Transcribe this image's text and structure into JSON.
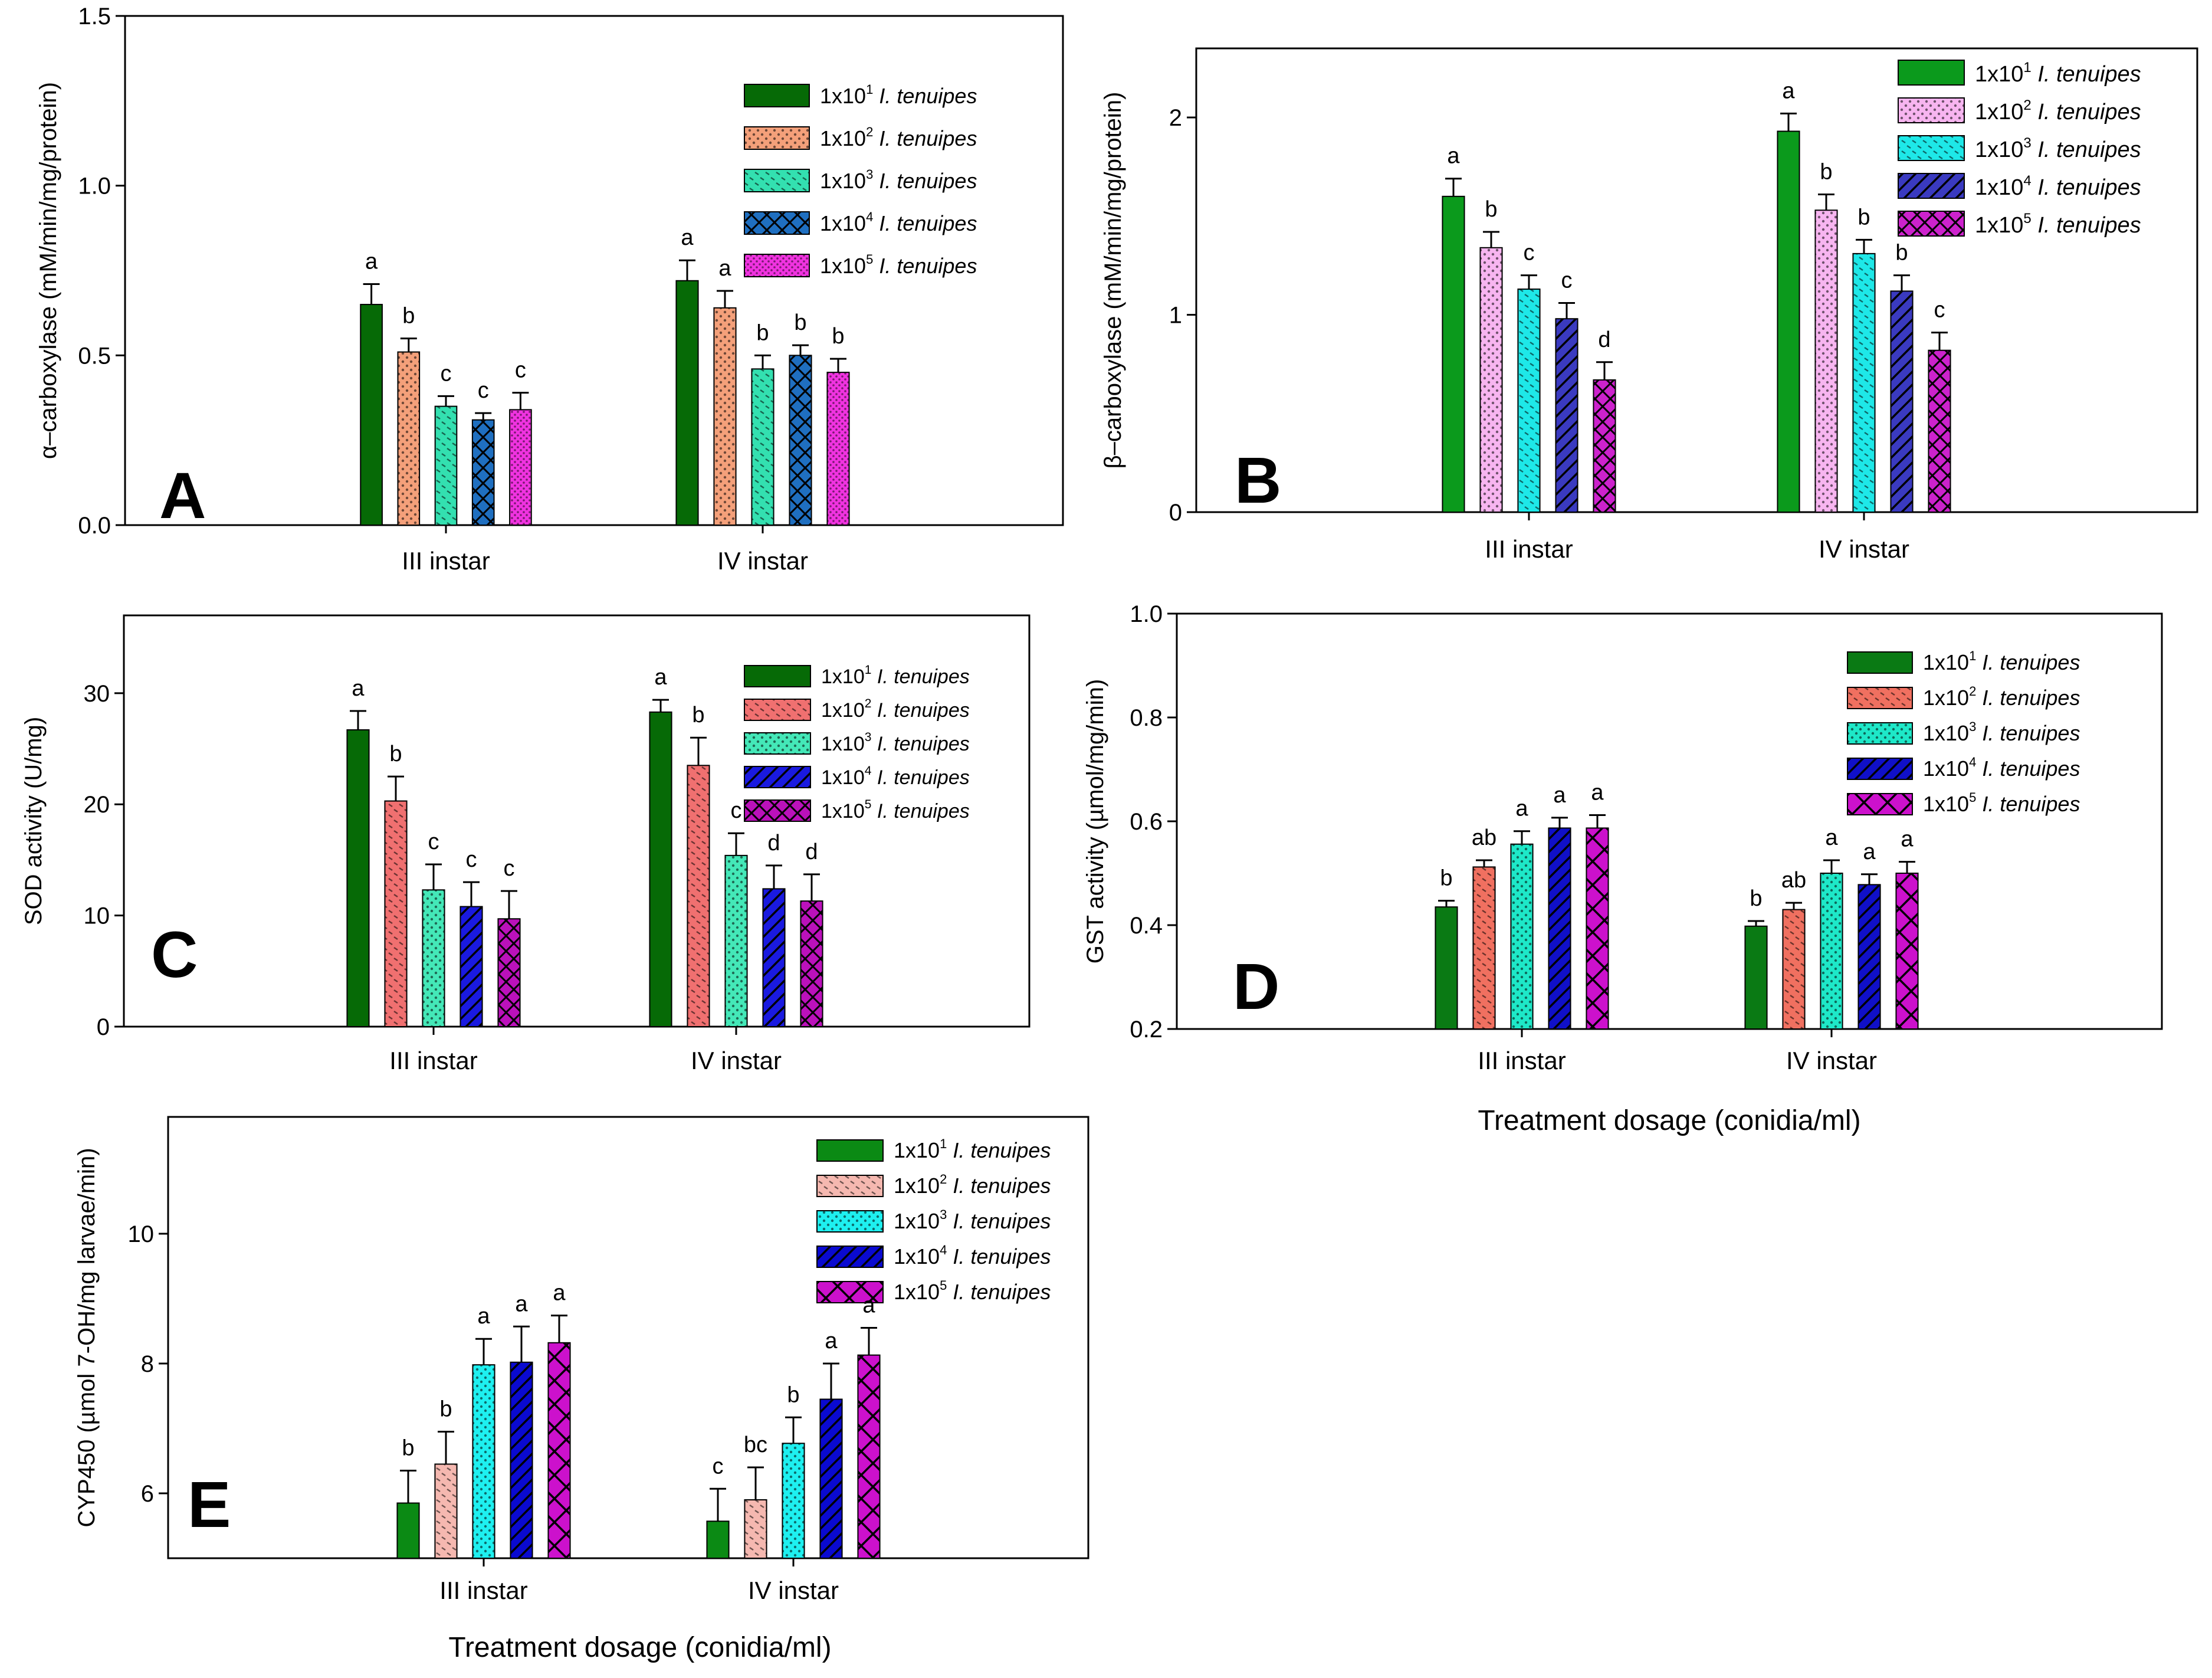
{
  "legend_entry": {
    "coef": "1x10",
    "species": "I. tenuipes"
  },
  "x_axis_title": "Treatment dosage (conidia/ml)",
  "chart_data": [
    {
      "id": "A",
      "type": "bar",
      "panel_letter": "A",
      "ylabel": "α–carboxylase (mM/min/mg/protein)",
      "ylim": [
        0,
        1.5
      ],
      "yticks": [
        "0.0",
        "0.5",
        "1.0",
        "1.5"
      ],
      "ytick_values": [
        0,
        0.5,
        1.0,
        1.5
      ],
      "categories": [
        "III instar",
        "IV instar"
      ],
      "series": [
        {
          "name": "1x10^1 I. tenuipes",
          "exp": "1",
          "color": "#066a06",
          "pattern": "none",
          "values": [
            0.65,
            0.72
          ],
          "errors": [
            0.06,
            0.06
          ],
          "letters": [
            "a",
            "a"
          ]
        },
        {
          "name": "1x10^2 I. tenuipes",
          "exp": "2",
          "color": "#f4a07a",
          "pattern": "dots",
          "values": [
            0.51,
            0.64
          ],
          "errors": [
            0.04,
            0.05
          ],
          "letters": [
            "b",
            "a"
          ]
        },
        {
          "name": "1x10^3 I. tenuipes",
          "exp": "3",
          "color": "#33e0b0",
          "pattern": "dashes",
          "values": [
            0.35,
            0.46
          ],
          "errors": [
            0.03,
            0.04
          ],
          "letters": [
            "c",
            "b"
          ]
        },
        {
          "name": "1x10^4 I. tenuipes",
          "exp": "4",
          "color": "#1f6fc0",
          "pattern": "cross",
          "values": [
            0.31,
            0.5
          ],
          "errors": [
            0.02,
            0.03
          ],
          "letters": [
            "c",
            "b"
          ]
        },
        {
          "name": "1x10^5 I. tenuipes",
          "exp": "5",
          "color": "#f033e0",
          "pattern": "dense",
          "values": [
            0.34,
            0.45
          ],
          "errors": [
            0.05,
            0.04
          ],
          "letters": [
            "c",
            "b"
          ]
        }
      ]
    },
    {
      "id": "B",
      "type": "bar",
      "panel_letter": "B",
      "ylabel": "β–carboxylase (mM/min/mg/protein)",
      "ylim": [
        0,
        2.35
      ],
      "yticks": [
        "0",
        "1",
        "2"
      ],
      "ytick_values": [
        0,
        1,
        2
      ],
      "categories": [
        "III instar",
        "IV instar"
      ],
      "series": [
        {
          "name": "1x10^1 I. tenuipes",
          "exp": "1",
          "color": "#0b9a1c",
          "pattern": "none",
          "values": [
            1.6,
            1.93
          ],
          "errors": [
            0.09,
            0.09
          ],
          "letters": [
            "a",
            "a"
          ]
        },
        {
          "name": "1x10^2 I. tenuipes",
          "exp": "2",
          "color": "#f7b5f0",
          "pattern": "dots",
          "values": [
            1.34,
            1.53
          ],
          "errors": [
            0.08,
            0.08
          ],
          "letters": [
            "b",
            "b"
          ]
        },
        {
          "name": "1x10^3 I. tenuipes",
          "exp": "3",
          "color": "#1ee8e8",
          "pattern": "dashes",
          "values": [
            1.13,
            1.31
          ],
          "errors": [
            0.07,
            0.07
          ],
          "letters": [
            "c",
            "b"
          ]
        },
        {
          "name": "1x10^4 I. tenuipes",
          "exp": "4",
          "color": "#3a3ac0",
          "pattern": "diag",
          "values": [
            0.98,
            1.12
          ],
          "errors": [
            0.08,
            0.08
          ],
          "letters": [
            "c",
            "b"
          ]
        },
        {
          "name": "1x10^5 I. tenuipes",
          "exp": "5",
          "color": "#cc22cc",
          "pattern": "cross",
          "values": [
            0.67,
            0.82
          ],
          "errors": [
            0.09,
            0.09
          ],
          "letters": [
            "d",
            "c"
          ]
        }
      ]
    },
    {
      "id": "C",
      "type": "bar",
      "panel_letter": "C",
      "ylabel": "SOD activity (U/mg)",
      "ylim": [
        0,
        37
      ],
      "yticks": [
        "0",
        "10",
        "20",
        "30"
      ],
      "ytick_values": [
        0,
        10,
        20,
        30
      ],
      "categories": [
        "III instar",
        "IV instar"
      ],
      "series": [
        {
          "name": "1x10^1 I. tenuipes",
          "exp": "1",
          "color": "#066a06",
          "pattern": "none",
          "values": [
            26.7,
            28.3
          ],
          "errors": [
            1.7,
            1.1
          ],
          "letters": [
            "a",
            "a"
          ]
        },
        {
          "name": "1x10^2 I. tenuipes",
          "exp": "2",
          "color": "#f07070",
          "pattern": "dashes",
          "values": [
            20.3,
            23.5
          ],
          "errors": [
            2.2,
            2.5
          ],
          "letters": [
            "b",
            "b"
          ]
        },
        {
          "name": "1x10^3 I. tenuipes",
          "exp": "3",
          "color": "#44e8b8",
          "pattern": "dots",
          "values": [
            12.3,
            15.4
          ],
          "errors": [
            2.3,
            2.0
          ],
          "letters": [
            "c",
            "c"
          ]
        },
        {
          "name": "1x10^4 I. tenuipes",
          "exp": "4",
          "color": "#1a1ae0",
          "pattern": "diag",
          "values": [
            10.8,
            12.4
          ],
          "errors": [
            2.2,
            2.1
          ],
          "letters": [
            "c",
            "d"
          ]
        },
        {
          "name": "1x10^5 I. tenuipes",
          "exp": "5",
          "color": "#bb11bb",
          "pattern": "cross",
          "values": [
            9.7,
            11.3
          ],
          "errors": [
            2.5,
            2.4
          ],
          "letters": [
            "c",
            "d"
          ]
        }
      ]
    },
    {
      "id": "D",
      "type": "bar",
      "panel_letter": "D",
      "ylabel": "GST activity (µmol/mg/min)",
      "ylim": [
        0.2,
        1.0
      ],
      "yticks": [
        "0.2",
        "0.4",
        "0.6",
        "0.8",
        "1.0"
      ],
      "ytick_values": [
        0.2,
        0.4,
        0.6,
        0.8,
        1.0
      ],
      "categories": [
        "III instar",
        "IV instar"
      ],
      "series": [
        {
          "name": "1x10^1 I. tenuipes",
          "exp": "1",
          "color": "#0a7a14",
          "pattern": "none",
          "values": [
            0.435,
            0.398
          ],
          "errors": [
            0.012,
            0.01
          ],
          "letters": [
            "b",
            "b"
          ]
        },
        {
          "name": "1x10^2 I. tenuipes",
          "exp": "2",
          "color": "#f07060",
          "pattern": "dashes",
          "values": [
            0.512,
            0.43
          ],
          "errors": [
            0.013,
            0.013
          ],
          "letters": [
            "ab",
            "ab"
          ]
        },
        {
          "name": "1x10^3 I. tenuipes",
          "exp": "3",
          "color": "#1ee8c8",
          "pattern": "dots",
          "values": [
            0.556,
            0.5
          ],
          "errors": [
            0.025,
            0.025
          ],
          "letters": [
            "a",
            "a"
          ]
        },
        {
          "name": "1x10^4 I. tenuipes",
          "exp": "4",
          "color": "#1010c8",
          "pattern": "diag",
          "values": [
            0.587,
            0.478
          ],
          "errors": [
            0.02,
            0.02
          ],
          "letters": [
            "a",
            "a"
          ]
        },
        {
          "name": "1x10^5 I. tenuipes",
          "exp": "5",
          "color": "#cc11cc",
          "pattern": "bigcross",
          "values": [
            0.587,
            0.5
          ],
          "errors": [
            0.025,
            0.022
          ],
          "letters": [
            "a",
            "a"
          ]
        }
      ]
    },
    {
      "id": "E",
      "type": "bar",
      "panel_letter": "E",
      "ylabel": "CYP450 (µmol 7-OH/mg larvae/min)",
      "ylim": [
        5,
        11.8
      ],
      "yticks": [
        "6",
        "8",
        "10"
      ],
      "ytick_values": [
        6,
        8,
        10
      ],
      "categories": [
        "III instar",
        "IV instar"
      ],
      "series": [
        {
          "name": "1x10^1 I. tenuipes",
          "exp": "1",
          "color": "#0b8a14",
          "pattern": "none",
          "values": [
            5.85,
            5.57
          ],
          "errors": [
            0.5,
            0.5
          ],
          "letters": [
            "b",
            "c"
          ]
        },
        {
          "name": "1x10^2 I. tenuipes",
          "exp": "2",
          "color": "#f5b8b0",
          "pattern": "dashes",
          "values": [
            6.45,
            5.9
          ],
          "errors": [
            0.5,
            0.5
          ],
          "letters": [
            "b",
            "bc"
          ]
        },
        {
          "name": "1x10^3 I. tenuipes",
          "exp": "3",
          "color": "#1ef0f0",
          "pattern": "dots",
          "values": [
            7.98,
            6.77
          ],
          "errors": [
            0.4,
            0.4
          ],
          "letters": [
            "a",
            "b"
          ]
        },
        {
          "name": "1x10^4 I. tenuipes",
          "exp": "4",
          "color": "#0a0ad0",
          "pattern": "diag",
          "values": [
            8.02,
            7.45
          ],
          "errors": [
            0.55,
            0.55
          ],
          "letters": [
            "a",
            "a"
          ]
        },
        {
          "name": "1x10^5 I. tenuipes",
          "exp": "5",
          "color": "#cc11cc",
          "pattern": "bigcross",
          "values": [
            8.32,
            8.13
          ],
          "errors": [
            0.42,
            0.42
          ],
          "letters": [
            "a",
            "a"
          ]
        }
      ]
    }
  ]
}
